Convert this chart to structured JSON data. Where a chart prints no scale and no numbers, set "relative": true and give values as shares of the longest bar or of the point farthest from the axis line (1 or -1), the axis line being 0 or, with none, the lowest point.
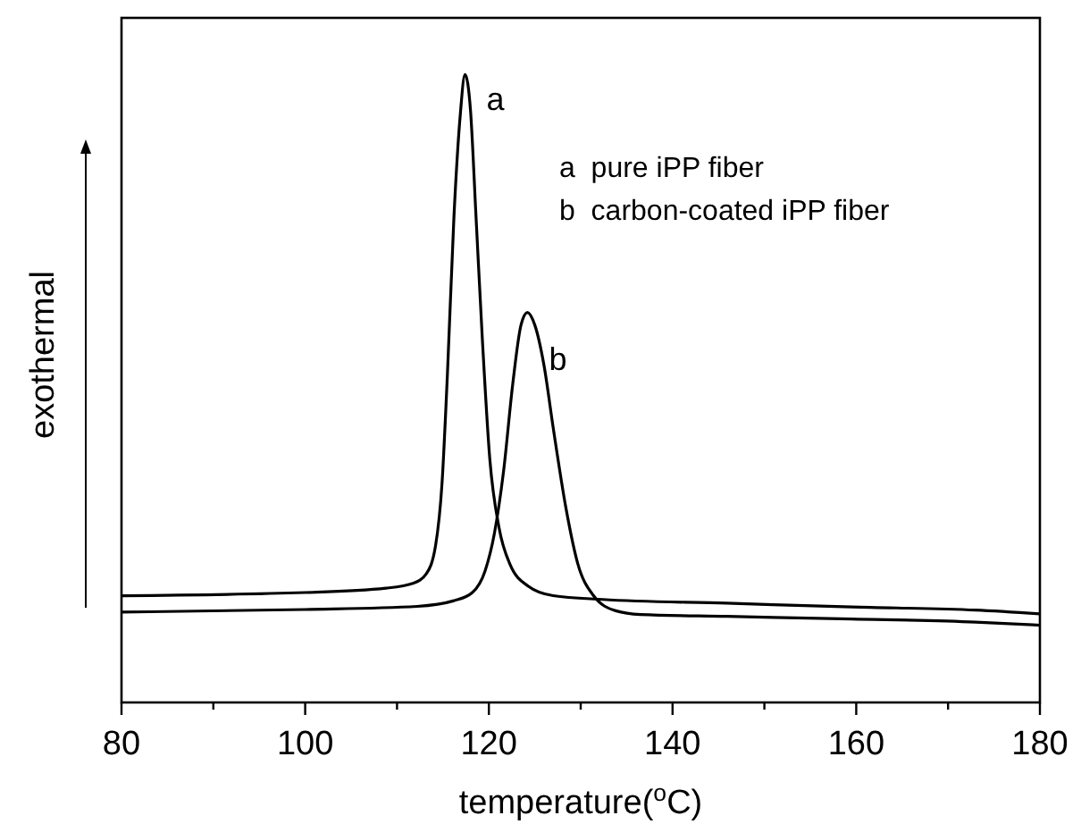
{
  "chart_data": {
    "type": "line",
    "relative": true,
    "xlabel": "temperature($^{o}$C)",
    "ylabel": "exothermal",
    "xlim": [
      80,
      180
    ],
    "xticks": [
      80,
      {
        "value": 90,
        "label": null
      },
      100,
      {
        "value": 110,
        "label": null
      },
      120,
      {
        "value": 130,
        "label": null
      },
      140,
      {
        "value": 150,
        "label": null
      },
      160,
      {
        "value": 170,
        "label": null
      },
      180
    ],
    "grid": false,
    "marker": "none",
    "line_style": "solid",
    "annotations": [
      "a  pure iPP fiber",
      "b  carbon-coated iPP fiber"
    ],
    "series": [
      {
        "name": "a",
        "color": "#000000",
        "x": [
          80,
          100,
          108.8,
          111.8,
          113.2,
          114.2,
          114.9,
          115.5,
          116.2,
          116.9,
          117.4,
          118.0,
          118.6,
          119.3,
          120.1,
          121.1,
          122.3,
          124.3,
          127.0,
          132.4,
          145.9,
          159.5,
          173.0,
          180
        ],
        "values": [
          0.17,
          0.175,
          0.182,
          0.19,
          0.205,
          0.25,
          0.349,
          0.527,
          0.774,
          0.938,
          1.0,
          0.943,
          0.774,
          0.576,
          0.388,
          0.279,
          0.22,
          0.185,
          0.17,
          0.164,
          0.158,
          0.152,
          0.147,
          0.141
        ]
      },
      {
        "name": "b",
        "color": "#000000",
        "x": [
          80,
          100,
          112.2,
          116.2,
          118.2,
          119.6,
          120.6,
          121.6,
          122.6,
          123.5,
          124.2,
          125.0,
          126.0,
          127.0,
          128.4,
          129.7,
          131.4,
          133.8,
          136.5,
          145.9,
          159.5,
          173.0,
          180
        ],
        "values": [
          0.144,
          0.148,
          0.153,
          0.162,
          0.175,
          0.21,
          0.269,
          0.368,
          0.507,
          0.601,
          0.621,
          0.601,
          0.537,
          0.438,
          0.309,
          0.22,
          0.17,
          0.146,
          0.14,
          0.137,
          0.133,
          0.128,
          0.123
        ]
      }
    ]
  }
}
